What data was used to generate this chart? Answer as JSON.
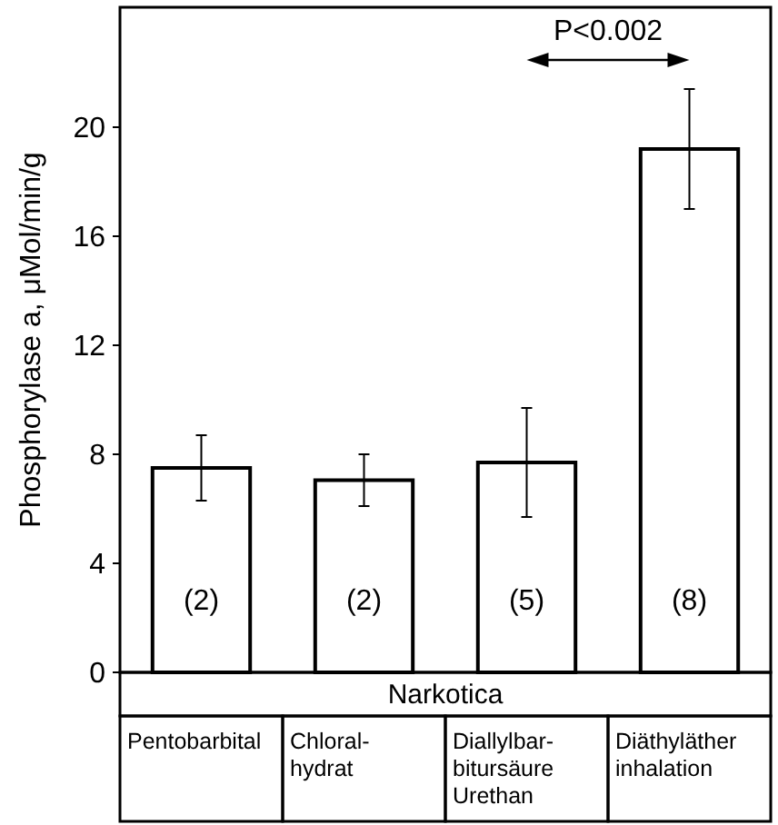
{
  "chart_data": {
    "type": "bar",
    "ylabel": "Phosphorylase a, μMol/min/g",
    "xlabel": "Narkotica",
    "categories": [
      "Pentobarbital",
      "Chloral-\nhydrat",
      "Diallylbar-\nbitursäure\nUrethan",
      "Diäthyläther\ninhalation"
    ],
    "values": [
      7.5,
      7.05,
      7.7,
      19.2
    ],
    "errors": [
      1.2,
      0.95,
      2.0,
      2.2
    ],
    "color": "#ffffff",
    "ylim": [
      0,
      24.4
    ],
    "yticks": [
      0,
      4,
      8,
      12,
      16,
      20
    ],
    "grid": false,
    "annotations": [
      "P<0.002",
      "(2)",
      "(2)",
      "(5)",
      "(8)"
    ]
  }
}
